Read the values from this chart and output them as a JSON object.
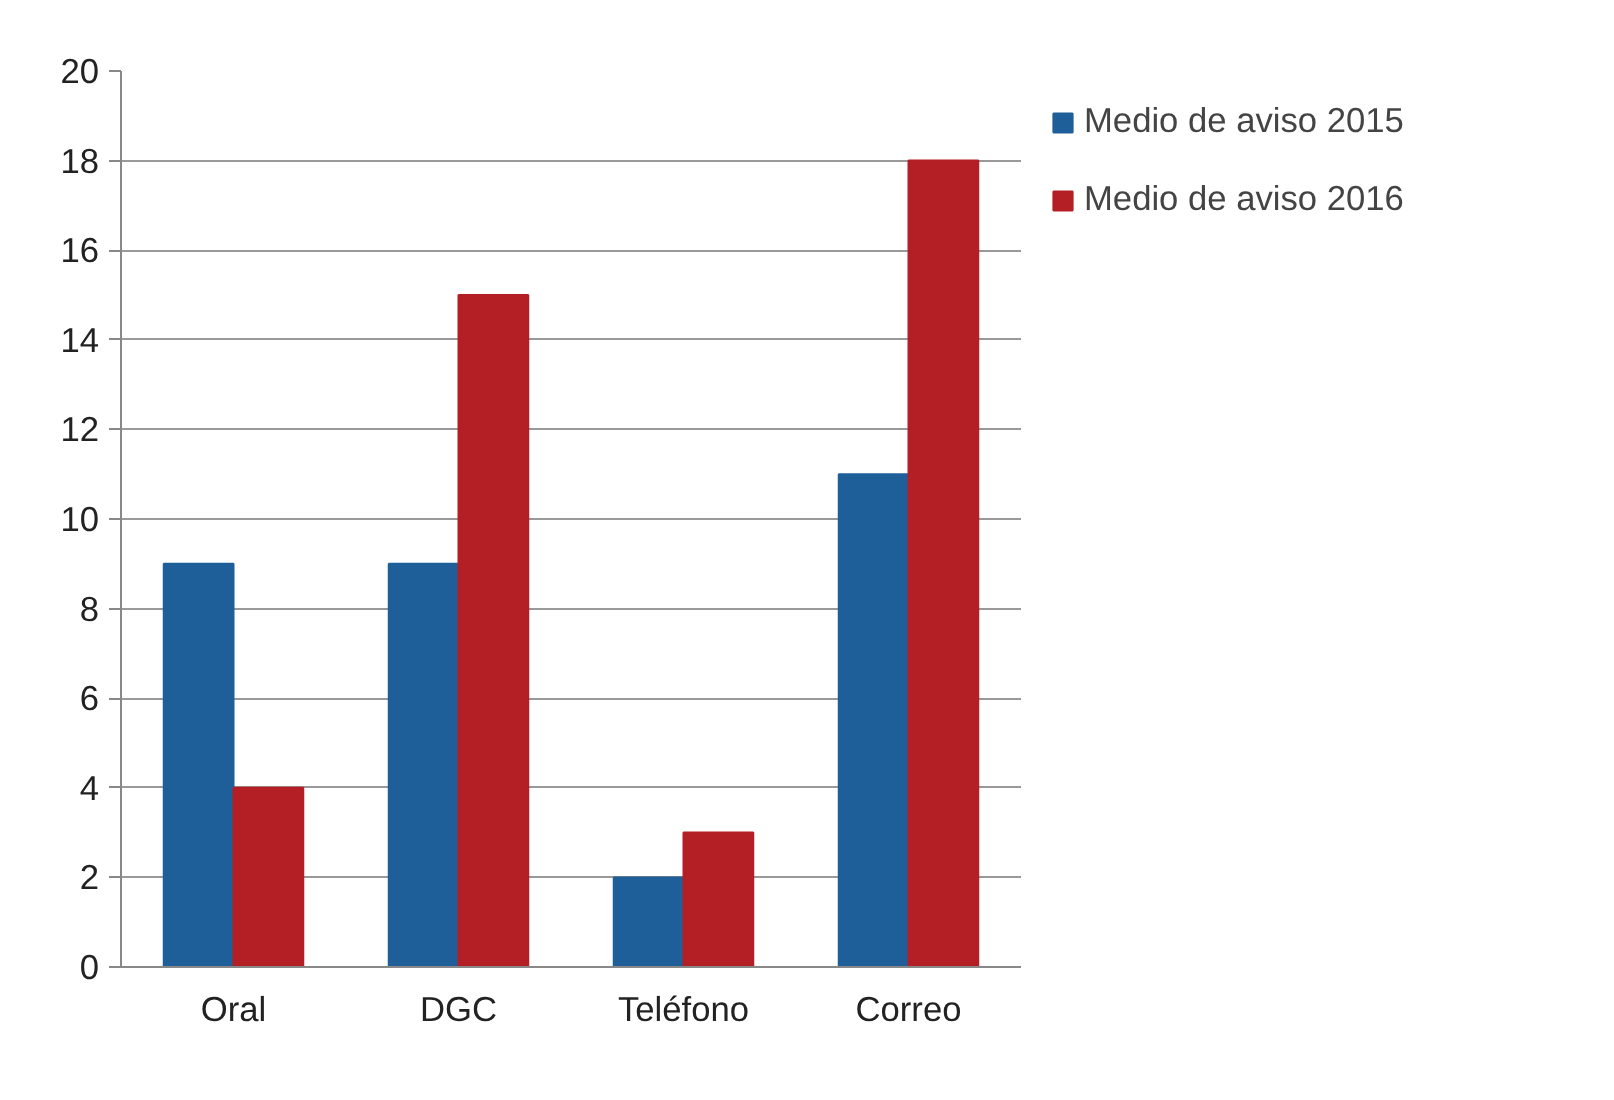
{
  "chart_data": {
    "type": "bar",
    "categories": [
      "Oral",
      "DGC",
      "Teléfono",
      "Correo"
    ],
    "series": [
      {
        "name": "Medio de aviso 2015",
        "color": "#1f5f99",
        "values": [
          9,
          9,
          2,
          11
        ]
      },
      {
        "name": "Medio de aviso 2016",
        "color": "#b31f24",
        "values": [
          4,
          15,
          3,
          18
        ]
      }
    ],
    "ylim": [
      0,
      20
    ],
    "yticks": [
      0,
      2,
      4,
      6,
      8,
      10,
      12,
      14,
      16,
      18,
      20
    ],
    "grid": "y",
    "legend": "right"
  }
}
